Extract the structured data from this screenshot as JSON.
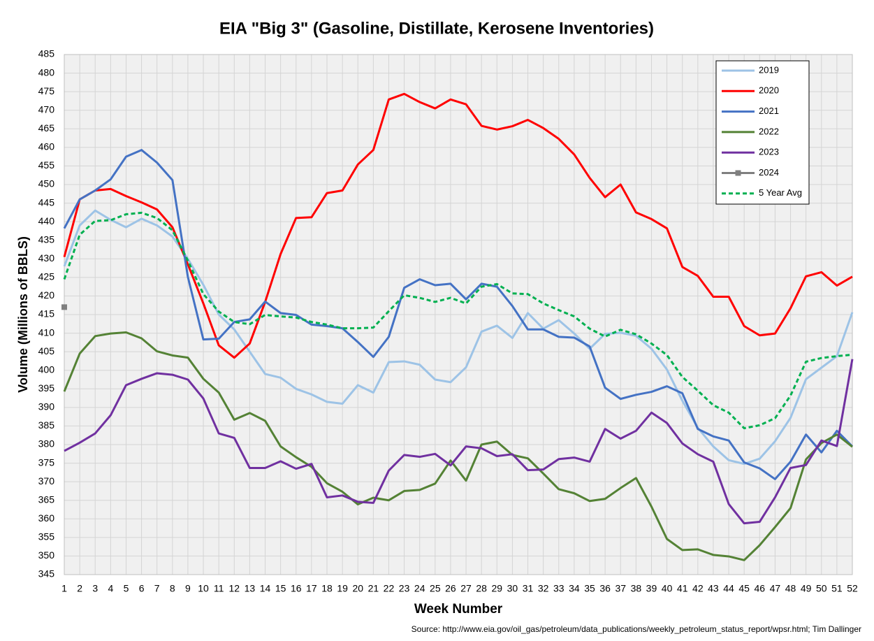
{
  "chart_data": {
    "type": "line",
    "title": "EIA \"Big 3\" (Gasoline, Distillate, Kerosene Inventories)",
    "x_label": "Week Number",
    "y_label": "Volume (Millions of BBLS)",
    "source": "Source: http://www.eia.gov/oil_gas/petroleum/data_publications/weekly_petroleum_status_report/wpsr.html; Tim Dallinger",
    "x": [
      1,
      2,
      3,
      4,
      5,
      6,
      7,
      8,
      9,
      10,
      11,
      12,
      13,
      14,
      15,
      16,
      17,
      18,
      19,
      20,
      21,
      22,
      23,
      24,
      25,
      26,
      27,
      28,
      29,
      30,
      31,
      32,
      33,
      34,
      35,
      36,
      37,
      38,
      39,
      40,
      41,
      42,
      43,
      44,
      45,
      46,
      47,
      48,
      49,
      50,
      51,
      52
    ],
    "xlim": [
      1,
      52
    ],
    "xticks": [
      1,
      2,
      3,
      4,
      5,
      6,
      7,
      8,
      9,
      10,
      11,
      12,
      13,
      14,
      15,
      16,
      17,
      18,
      19,
      20,
      21,
      22,
      23,
      24,
      25,
      26,
      27,
      28,
      29,
      30,
      31,
      32,
      33,
      34,
      35,
      36,
      37,
      38,
      39,
      40,
      41,
      42,
      43,
      44,
      45,
      46,
      47,
      48,
      49,
      50,
      51,
      52
    ],
    "ylim": [
      345,
      485
    ],
    "yticks": [
      345,
      350,
      355,
      360,
      365,
      370,
      375,
      380,
      385,
      390,
      395,
      400,
      405,
      410,
      415,
      420,
      425,
      430,
      435,
      440,
      445,
      450,
      455,
      460,
      465,
      470,
      475,
      480,
      485
    ],
    "grid": true,
    "legend": "top-right",
    "series": [
      {
        "name": "2019",
        "color": "#9dc3e6",
        "values": [
          428,
          439,
          443,
          440.5,
          438.5,
          440.8,
          439,
          436,
          430,
          423,
          415,
          411,
          405,
          399,
          398,
          395,
          393.5,
          391.5,
          391,
          396,
          394,
          402.2,
          402.4,
          401.5,
          397.5,
          396.8,
          400.8,
          410.4,
          412,
          408.7,
          415.4,
          411.2,
          413.5,
          409.9,
          405.8,
          409.8,
          410.1,
          409.3,
          405.8,
          400.2,
          391.8,
          384.5,
          379.5,
          375.8,
          374.8,
          376.2,
          380.9,
          387.2,
          397.6,
          400.7,
          403.8,
          415.6
        ]
      },
      {
        "name": "2020",
        "color": "#ff0000",
        "values": [
          430.5,
          446,
          448.4,
          448.8,
          446.9,
          445.2,
          443.3,
          438.5,
          428.5,
          418,
          406.7,
          403.4,
          407.2,
          418.4,
          431.3,
          441,
          441.2,
          447.7,
          448.4,
          455.4,
          459.3,
          472.9,
          474.4,
          472.2,
          470.5,
          472.9,
          471.6,
          465.8,
          464.8,
          465.7,
          467.4,
          465.2,
          462.3,
          458.1,
          451.8,
          446.6,
          450,
          442.5,
          440.7,
          438.2,
          427.8,
          425.4,
          419.8,
          419.8,
          411.9,
          409.4,
          409.9,
          416.7,
          425.3,
          426.4,
          422.8,
          425.2
        ]
      },
      {
        "name": "2021",
        "color": "#4472c4",
        "values": [
          438.2,
          446,
          448.4,
          451.4,
          457.5,
          459.3,
          455.9,
          451.2,
          425.1,
          408.3,
          408.5,
          413,
          413.7,
          418.5,
          415.4,
          414.9,
          412.3,
          411.9,
          411.3,
          407.6,
          403.6,
          409,
          422.2,
          424.5,
          422.9,
          423.3,
          419.1,
          423.3,
          422.5,
          417.3,
          411,
          411,
          409,
          408.8,
          406.4,
          395.3,
          392.3,
          393.4,
          394.2,
          395.7,
          393.8,
          384.2,
          382.2,
          381.1,
          375.2,
          373.6,
          370.7,
          375.4,
          382.7,
          377.9,
          383.7,
          379.5
        ]
      },
      {
        "name": "2022",
        "color": "#548235",
        "values": [
          394.3,
          404.5,
          409.2,
          409.9,
          410.2,
          408.6,
          405.1,
          404,
          403.4,
          397.7,
          394,
          386.7,
          388.5,
          386.4,
          379.5,
          376.6,
          374,
          369.6,
          367.3,
          363.9,
          365.7,
          365,
          367.5,
          367.8,
          369.5,
          375.7,
          370.3,
          380,
          380.8,
          377.2,
          376.3,
          372.2,
          368,
          366.9,
          364.8,
          365.4,
          368.3,
          371,
          363.3,
          354.6,
          351.6,
          351.8,
          350.3,
          349.9,
          348.9,
          352.9,
          357.8,
          362.9,
          376,
          380.4,
          382.7,
          379.4
        ]
      },
      {
        "name": "2023",
        "color": "#7030a0",
        "values": [
          378.3,
          380.5,
          383,
          387.9,
          396,
          397.7,
          399.2,
          398.8,
          397.5,
          392.4,
          383,
          381.8,
          373.7,
          373.7,
          375.5,
          373.5,
          374.8,
          365.8,
          366.3,
          364.6,
          364.3,
          373,
          377.2,
          376.7,
          377.5,
          374.4,
          379.5,
          379,
          376.9,
          377.4,
          373.1,
          373.3,
          376.1,
          376.5,
          375.4,
          384.2,
          381.6,
          383.7,
          388.6,
          385.8,
          380.3,
          377.4,
          375.4,
          364,
          358.8,
          359.2,
          365.8,
          373.7,
          374.5,
          381.1,
          379.6,
          403
        ]
      },
      {
        "name": "2024",
        "color": "#7f7f7f",
        "marker": "square",
        "values": [
          417,
          null,
          null,
          null,
          null,
          null,
          null,
          null,
          null,
          null,
          null,
          null,
          null,
          null,
          null,
          null,
          null,
          null,
          null,
          null,
          null,
          null,
          null,
          null,
          null,
          null,
          null,
          null,
          null,
          null,
          null,
          null,
          null,
          null,
          null,
          null,
          null,
          null,
          null,
          null,
          null,
          null,
          null,
          null,
          null,
          null,
          null,
          null,
          null,
          null,
          null,
          null
        ]
      },
      {
        "name": "5 Year Avg",
        "color": "#00b050",
        "dash": true,
        "values": [
          424.5,
          436.5,
          440.2,
          440.4,
          442,
          442.4,
          441,
          437.7,
          429.5,
          420.5,
          415.8,
          413,
          412.4,
          414.9,
          414.5,
          414.2,
          413,
          412.3,
          411.3,
          411.3,
          411.5,
          415.9,
          420.2,
          419.5,
          418.4,
          419.5,
          418,
          422.5,
          423.2,
          420.7,
          420.5,
          418,
          416.2,
          414.5,
          411.2,
          409.1,
          410.9,
          409.7,
          407.2,
          404.1,
          398.2,
          394.5,
          390.6,
          388.6,
          384.4,
          385.2,
          387.1,
          393.2,
          402.3,
          403.3,
          403.8,
          404.2
        ]
      }
    ]
  }
}
